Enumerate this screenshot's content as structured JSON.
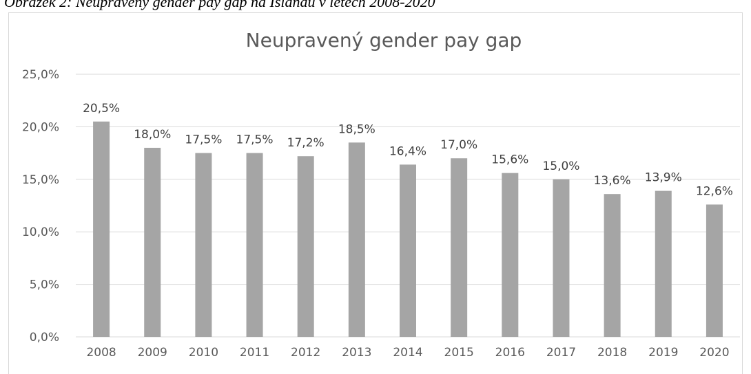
{
  "caption": "Obrázek 2: Neupravený gender pay gap na Islandu v letech 2008-2020",
  "chart_data": {
    "type": "bar",
    "title": "Neupravený gender pay gap",
    "categories": [
      "2008",
      "2009",
      "2010",
      "2011",
      "2012",
      "2013",
      "2014",
      "2015",
      "2016",
      "2017",
      "2018",
      "2019",
      "2020"
    ],
    "values": [
      20.5,
      18.0,
      17.5,
      17.5,
      17.2,
      18.5,
      16.4,
      17.0,
      15.6,
      15.0,
      13.6,
      13.9,
      12.6
    ],
    "value_labels": [
      "20,5%",
      "18,0%",
      "17,5%",
      "17,5%",
      "17,2%",
      "18,5%",
      "16,4%",
      "17,0%",
      "15,6%",
      "15,0%",
      "13,6%",
      "13,9%",
      "12,6%"
    ],
    "color": "#a5a5a5",
    "ylim": [
      0,
      25
    ],
    "yticks": [
      {
        "value": 0,
        "label": "0,0%"
      },
      {
        "value": 5,
        "label": "5,0%"
      },
      {
        "value": 10,
        "label": "10,0%"
      },
      {
        "value": 15,
        "label": "15,0%"
      },
      {
        "value": 20,
        "label": "20,0%"
      },
      {
        "value": 25,
        "label": "25,0%"
      }
    ],
    "grid": true
  }
}
